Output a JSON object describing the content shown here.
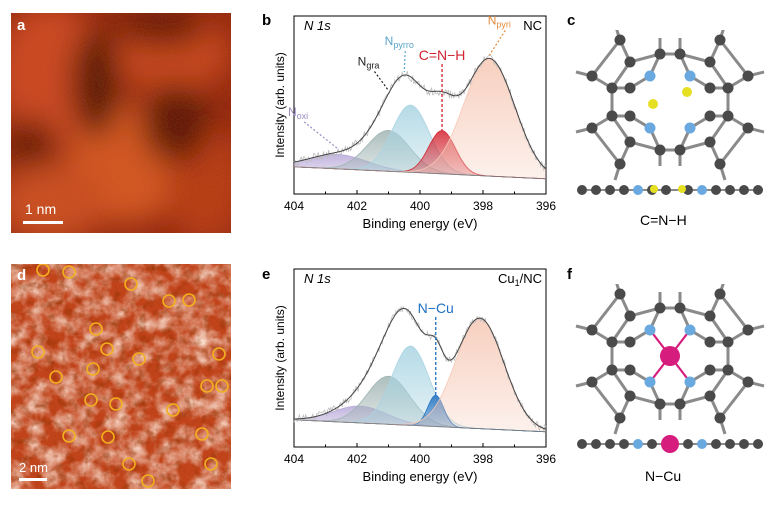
{
  "panels": {
    "a": {
      "label": "a",
      "scalebar": "1 nm"
    },
    "b": {
      "label": "b",
      "spectrum": "N 1s",
      "sample": "NC"
    },
    "c": {
      "label": "c",
      "caption": "C=N−H"
    },
    "d": {
      "label": "d",
      "scalebar": "2 nm"
    },
    "e": {
      "label": "e",
      "spectrum": "N 1s",
      "sample_main": "Cu",
      "sample_sub": "1",
      "sample_tail": "/NC"
    },
    "f": {
      "label": "f",
      "caption": "N−Cu"
    }
  },
  "chart_data": [
    {
      "type": "line",
      "panel": "b",
      "xlabel": "Binding energy (eV)",
      "ylabel": "Intensity (arb. units)",
      "xlim": [
        404,
        396
      ],
      "xticks": [
        404,
        402,
        400,
        398,
        396
      ],
      "x_reversed": true,
      "grid": false,
      "annotations": [
        {
          "text": "N",
          "sub": "oxi",
          "x": 402.6,
          "color": "#9b8cc4"
        },
        {
          "text": "N",
          "sub": "gra",
          "x": 401.0,
          "color": "#222222"
        },
        {
          "text": "N",
          "sub": "pyrro",
          "x": 400.5,
          "color": "#5aa6c9"
        },
        {
          "text": "C=N−H",
          "sub": "",
          "x": 399.3,
          "color": "#d22430"
        },
        {
          "text": "N",
          "sub": "pyri",
          "x": 397.8,
          "color": "#e08a3c"
        }
      ],
      "series": [
        {
          "name": "N oxi",
          "type": "gaussian",
          "center": 402.6,
          "fwhm": 2.2,
          "height": 0.12,
          "color": "#b7a8d8"
        },
        {
          "name": "N gra",
          "type": "gaussian",
          "center": 401.0,
          "fwhm": 1.6,
          "height": 0.34,
          "color": "#9fb4b2"
        },
        {
          "name": "N pyrro",
          "type": "gaussian",
          "center": 400.3,
          "fwhm": 1.4,
          "height": 0.56,
          "color": "#a8d4e2"
        },
        {
          "name": "C=N−H",
          "type": "gaussian",
          "center": 399.3,
          "fwhm": 1.0,
          "height": 0.36,
          "color": "#d22430"
        },
        {
          "name": "N pyri",
          "type": "gaussian",
          "center": 397.8,
          "fwhm": 1.9,
          "height": 0.98,
          "color": "#f6c7b4"
        }
      ]
    },
    {
      "type": "line",
      "panel": "e",
      "xlabel": "Binding energy (eV)",
      "ylabel": "Intensity (arb. units)",
      "xlim": [
        404,
        396
      ],
      "xticks": [
        404,
        402,
        400,
        398,
        396
      ],
      "x_reversed": true,
      "grid": false,
      "annotations": [
        {
          "text": "N−Cu",
          "sub": "",
          "x": 399.5,
          "color": "#1f6fc2"
        }
      ],
      "series": [
        {
          "name": "N oxi",
          "type": "gaussian",
          "center": 401.9,
          "fwhm": 2.0,
          "height": 0.14,
          "color": "#b7a8d8"
        },
        {
          "name": "N gra",
          "type": "gaussian",
          "center": 401.0,
          "fwhm": 1.6,
          "height": 0.4,
          "color": "#9fb4b2"
        },
        {
          "name": "N pyrro",
          "type": "gaussian",
          "center": 400.3,
          "fwhm": 1.4,
          "height": 0.66,
          "color": "#a8d4e2"
        },
        {
          "name": "N−Cu",
          "type": "gaussian",
          "center": 399.5,
          "fwhm": 0.6,
          "height": 0.26,
          "color": "#1f6fc2"
        },
        {
          "name": "N pyri",
          "type": "gaussian",
          "center": 398.1,
          "fwhm": 1.8,
          "height": 0.92,
          "color": "#f6c7b4"
        }
      ]
    }
  ],
  "colors": {
    "stm_dark": "#6e1505",
    "stm_mid": "#b0330e",
    "stm_bright": "#f3c6a7",
    "circle": "#f2b01e",
    "carbon": "#4a4a4a",
    "nitrogen": "#6aa9e0",
    "hydrogen": "#e6e022",
    "copper": "#d61d7d",
    "bond": "#8a8a8a"
  },
  "icons": [
    "stm-image",
    "molecule-structure"
  ]
}
